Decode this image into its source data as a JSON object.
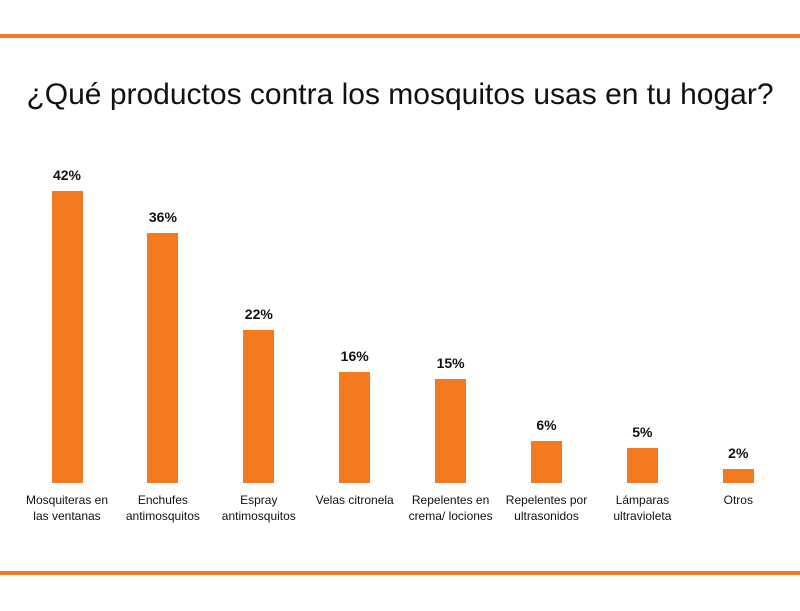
{
  "chart_data": {
    "type": "bar",
    "title": "¿Qué productos contra los mosquitos usas en tu hogar?",
    "categories": [
      "Mosquiteras en las ventanas",
      "Enchufes antimosquitos",
      "Espray antimosquitos",
      "Velas citronela",
      "Repelentes en crema/ lociones",
      "Repelentes por ultrasonidos",
      "Lámparas ultravioleta",
      "Otros"
    ],
    "values": [
      42,
      36,
      22,
      16,
      15,
      6,
      5,
      2
    ],
    "value_labels": [
      "42%",
      "36%",
      "22%",
      "16%",
      "15%",
      "6%",
      "5%",
      "2%"
    ],
    "color": "#f47a20"
  }
}
